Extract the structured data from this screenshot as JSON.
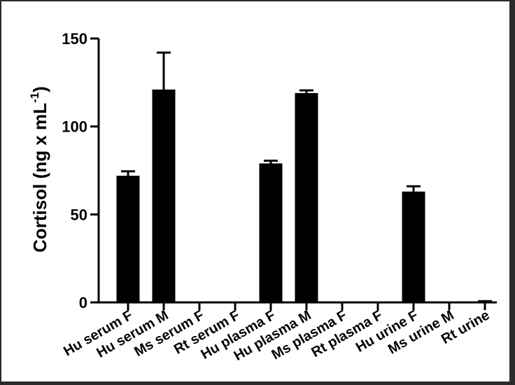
{
  "chart_data": {
    "type": "bar",
    "ylabel": "Cortisol (ng x mL",
    "ylabel_sup": "-1",
    "ylabel_close": ")",
    "ylim": [
      0,
      150
    ],
    "yticks": [
      0,
      50,
      100,
      150
    ],
    "grid": false,
    "categories": [
      "Hu serum F",
      "Hu serum M",
      "Ms serum F",
      "Rt serum F",
      "Hu plasma F",
      "Hu plasma M",
      "Ms plasma F",
      "Rt plasma F",
      "Hu urine F",
      "Ms urine M",
      "Rt urine"
    ],
    "values": [
      72,
      121,
      0,
      0,
      79,
      119,
      0,
      0,
      63,
      0,
      0.3
    ],
    "errors": [
      2.5,
      21,
      0,
      0,
      1.5,
      1.5,
      0,
      0,
      3,
      0,
      0.4
    ],
    "bar_color": "#000000"
  }
}
